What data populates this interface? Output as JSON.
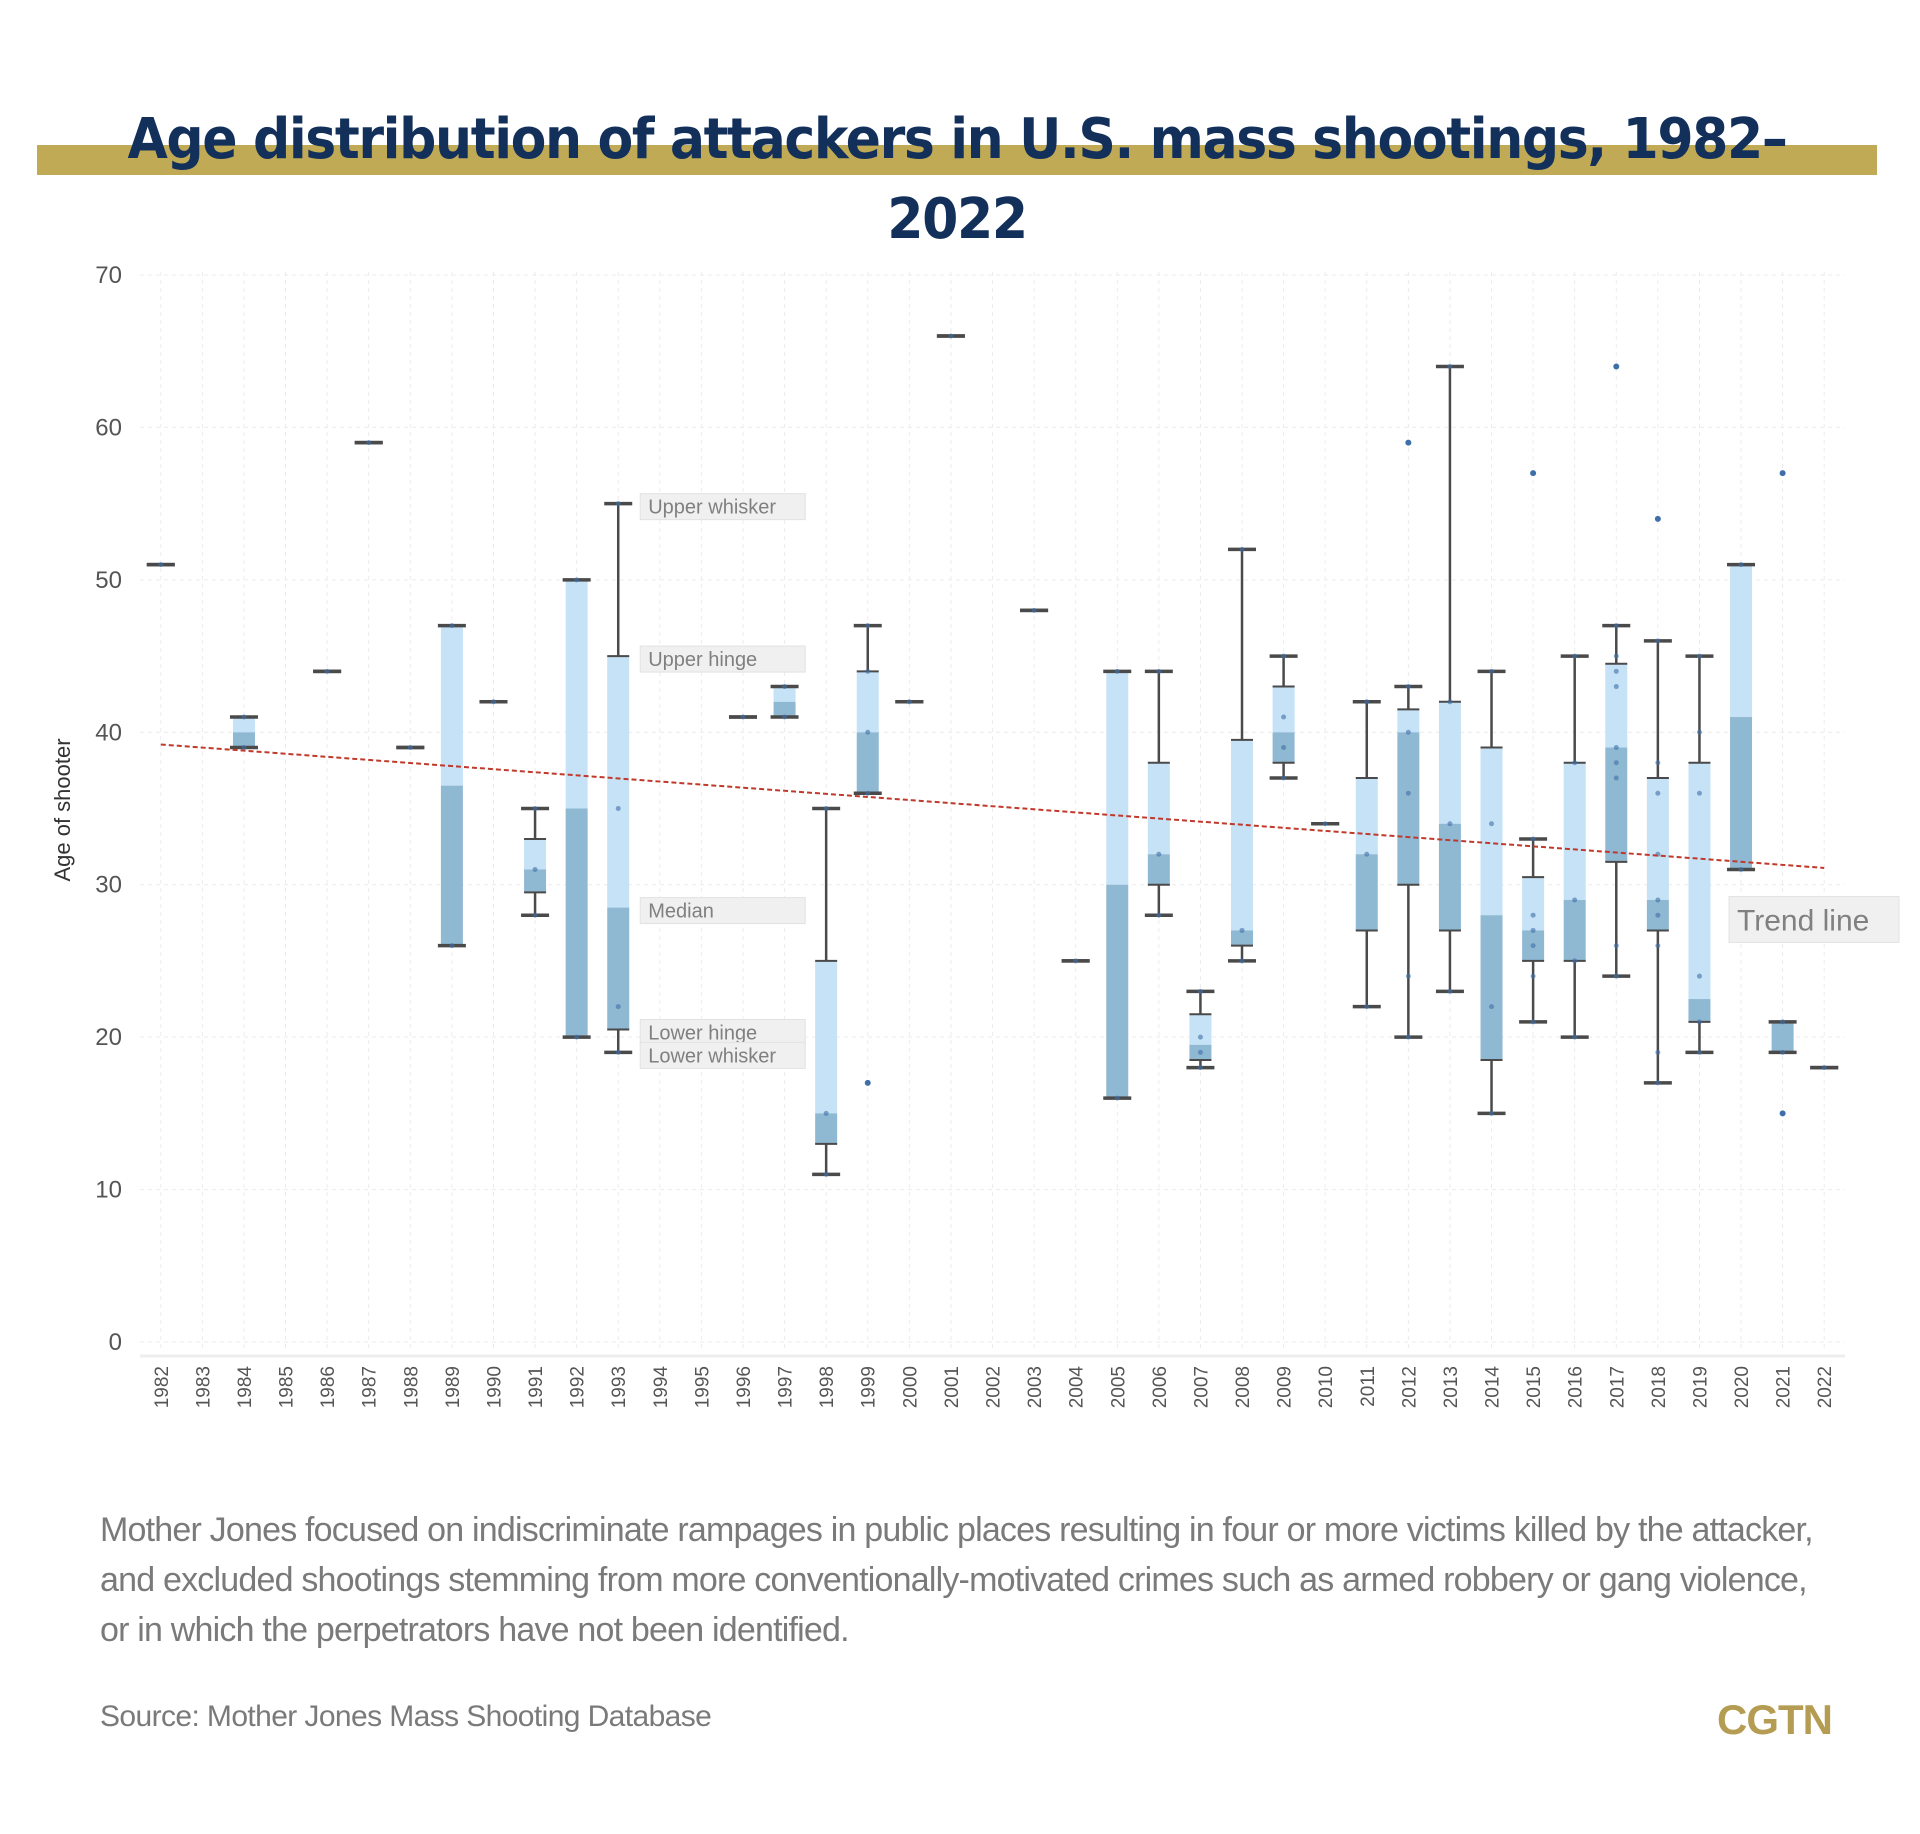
{
  "header": {
    "title": "Age distribution of attackers in U.S. mass shootings, 1982–2022"
  },
  "footer": {
    "note": "Mother Jones focused on indiscriminate rampages in public places resulting in four or more victims killed by the attacker, and excluded shootings stemming from more conventionally-motivated crimes such as armed robbery or gang violence, or in which the perpetrators have not been identified.",
    "source": "Source: Mother Jones Mass Shooting Database",
    "logo": "CGTN"
  },
  "colors": {
    "upper_box": "#c5e2f6",
    "lower_box": "#8fb8d3",
    "whisker": "#4a4a4a",
    "point": "#3f6fa8",
    "trend": "#c0392b",
    "title_bar": "#c0aa55",
    "title_text": "#13305a"
  },
  "chart_data": {
    "type": "box",
    "title": "Age distribution of attackers in U.S. mass shootings, 1982–2022",
    "xlabel": "",
    "ylabel": "Age of shooter",
    "ylim": [
      0,
      70
    ],
    "yticks": [
      0,
      10,
      20,
      30,
      40,
      50,
      60,
      70
    ],
    "grid": true,
    "categories": [
      "1982",
      "1983",
      "1984",
      "1985",
      "1986",
      "1987",
      "1988",
      "1989",
      "1990",
      "1991",
      "1992",
      "1993",
      "1994",
      "1995",
      "1996",
      "1997",
      "1998",
      "1999",
      "2000",
      "2001",
      "2002",
      "2003",
      "2004",
      "2005",
      "2006",
      "2007",
      "2008",
      "2009",
      "2010",
      "2011",
      "2012",
      "2013",
      "2014",
      "2015",
      "2016",
      "2017",
      "2018",
      "2019",
      "2020",
      "2021",
      "2022"
    ],
    "boxes": [
      {
        "year": "1982",
        "lw": 51,
        "q1": 51,
        "median": 51,
        "q3": 51,
        "uw": 51,
        "points": [
          51
        ],
        "outliers": []
      },
      {
        "year": "1983"
      },
      {
        "year": "1984",
        "lw": 39,
        "q1": 39,
        "median": 40,
        "q3": 41,
        "uw": 41,
        "points": [
          39,
          41
        ],
        "outliers": []
      },
      {
        "year": "1985"
      },
      {
        "year": "1986",
        "lw": 44,
        "q1": 44,
        "median": 44,
        "q3": 44,
        "uw": 44,
        "points": [
          44
        ],
        "outliers": []
      },
      {
        "year": "1987",
        "lw": 59,
        "q1": 59,
        "median": 59,
        "q3": 59,
        "uw": 59,
        "points": [
          59
        ],
        "outliers": []
      },
      {
        "year": "1988",
        "lw": 39,
        "q1": 39,
        "median": 39,
        "q3": 39,
        "uw": 39,
        "points": [
          39
        ],
        "outliers": []
      },
      {
        "year": "1989",
        "lw": 26,
        "q1": 26,
        "median": 36.5,
        "q3": 47,
        "uw": 47,
        "points": [
          26,
          47
        ],
        "outliers": []
      },
      {
        "year": "1990",
        "lw": 42,
        "q1": 42,
        "median": 42,
        "q3": 42,
        "uw": 42,
        "points": [
          42
        ],
        "outliers": []
      },
      {
        "year": "1991",
        "lw": 28,
        "q1": 29.5,
        "median": 31,
        "q3": 33,
        "uw": 35,
        "points": [
          28,
          31,
          35
        ],
        "outliers": []
      },
      {
        "year": "1992",
        "lw": 20,
        "q1": 20,
        "median": 35,
        "q3": 50,
        "uw": 50,
        "points": [
          20,
          50
        ],
        "outliers": []
      },
      {
        "year": "1993",
        "lw": 19,
        "q1": 20.5,
        "median": 28.5,
        "q3": 45,
        "uw": 55,
        "points": [
          19,
          22,
          35,
          55
        ],
        "outliers": []
      },
      {
        "year": "1994",
        "lw": 20,
        "q1": 20,
        "median": 20,
        "q3": 20,
        "uw": 20,
        "points": [
          20
        ],
        "outliers": []
      },
      {
        "year": "1995",
        "lw": 28,
        "q1": 28,
        "median": 28,
        "q3": 28,
        "uw": 28,
        "points": [
          28
        ],
        "outliers": []
      },
      {
        "year": "1996",
        "lw": 41,
        "q1": 41,
        "median": 41,
        "q3": 41,
        "uw": 41,
        "points": [
          41
        ],
        "outliers": []
      },
      {
        "year": "1997",
        "lw": 41,
        "q1": 41,
        "median": 42,
        "q3": 43,
        "uw": 43,
        "points": [
          41,
          43
        ],
        "outliers": []
      },
      {
        "year": "1998",
        "lw": 11,
        "q1": 13,
        "median": 15,
        "q3": 25,
        "uw": 35,
        "points": [
          11,
          15,
          35
        ],
        "outliers": []
      },
      {
        "year": "1999",
        "lw": 36,
        "q1": 36,
        "median": 40,
        "q3": 44,
        "uw": 47,
        "points": [
          36,
          40,
          44,
          47
        ],
        "outliers": [
          17
        ]
      },
      {
        "year": "2000",
        "lw": 42,
        "q1": 42,
        "median": 42,
        "q3": 42,
        "uw": 42,
        "points": [
          42
        ],
        "outliers": []
      },
      {
        "year": "2001",
        "lw": 66,
        "q1": 66,
        "median": 66,
        "q3": 66,
        "uw": 66,
        "points": [
          66
        ],
        "outliers": []
      },
      {
        "year": "2002"
      },
      {
        "year": "2003",
        "lw": 48,
        "q1": 48,
        "median": 48,
        "q3": 48,
        "uw": 48,
        "points": [
          48
        ],
        "outliers": []
      },
      {
        "year": "2004",
        "lw": 25,
        "q1": 25,
        "median": 25,
        "q3": 25,
        "uw": 25,
        "points": [
          25
        ],
        "outliers": []
      },
      {
        "year": "2005",
        "lw": 16,
        "q1": 16,
        "median": 30,
        "q3": 44,
        "uw": 44,
        "points": [
          16,
          44
        ],
        "outliers": []
      },
      {
        "year": "2006",
        "lw": 28,
        "q1": 30,
        "median": 32,
        "q3": 38,
        "uw": 44,
        "points": [
          28,
          32,
          44
        ],
        "outliers": []
      },
      {
        "year": "2007",
        "lw": 18,
        "q1": 18.5,
        "median": 19.5,
        "q3": 21.5,
        "uw": 23,
        "points": [
          18,
          19,
          20,
          23
        ],
        "outliers": []
      },
      {
        "year": "2008",
        "lw": 25,
        "q1": 26,
        "median": 27,
        "q3": 39.5,
        "uw": 52,
        "points": [
          25,
          27,
          52
        ],
        "outliers": []
      },
      {
        "year": "2009",
        "lw": 37,
        "q1": 38,
        "median": 40,
        "q3": 43,
        "uw": 45,
        "points": [
          37,
          39,
          41,
          45
        ],
        "outliers": []
      },
      {
        "year": "2010",
        "lw": 34,
        "q1": 34,
        "median": 34,
        "q3": 34,
        "uw": 34,
        "points": [
          34
        ],
        "outliers": []
      },
      {
        "year": "2011",
        "lw": 22,
        "q1": 27,
        "median": 32,
        "q3": 37,
        "uw": 42,
        "points": [
          22,
          32,
          42
        ],
        "outliers": []
      },
      {
        "year": "2012",
        "lw": 20,
        "q1": 30,
        "median": 40,
        "q3": 41.5,
        "uw": 43,
        "points": [
          20,
          24,
          36,
          40,
          43
        ],
        "outliers": [
          59
        ]
      },
      {
        "year": "2013",
        "lw": 23,
        "q1": 27,
        "median": 34,
        "q3": 42,
        "uw": 64,
        "points": [
          23,
          34,
          42,
          64
        ],
        "outliers": []
      },
      {
        "year": "2014",
        "lw": 15,
        "q1": 18.5,
        "median": 28,
        "q3": 39,
        "uw": 44,
        "points": [
          15,
          22,
          34,
          44
        ],
        "outliers": []
      },
      {
        "year": "2015",
        "lw": 21,
        "q1": 25,
        "median": 27,
        "q3": 30.5,
        "uw": 33,
        "points": [
          21,
          24,
          26,
          27,
          28,
          33
        ],
        "outliers": [
          57
        ]
      },
      {
        "year": "2016",
        "lw": 20,
        "q1": 25,
        "median": 29,
        "q3": 38,
        "uw": 45,
        "points": [
          20,
          25,
          29,
          38,
          45
        ],
        "outliers": []
      },
      {
        "year": "2017",
        "lw": 24,
        "q1": 31.5,
        "median": 39,
        "q3": 44.5,
        "uw": 47,
        "points": [
          24,
          26,
          37,
          38,
          39,
          43,
          44,
          45,
          47
        ],
        "outliers": [
          64
        ]
      },
      {
        "year": "2018",
        "lw": 17,
        "q1": 27,
        "median": 29,
        "q3": 37,
        "uw": 46,
        "points": [
          17,
          19,
          26,
          28,
          29,
          32,
          36,
          38,
          46
        ],
        "outliers": [
          54
        ]
      },
      {
        "year": "2019",
        "lw": 19,
        "q1": 21,
        "median": 22.5,
        "q3": 38,
        "uw": 45,
        "points": [
          19,
          21,
          24,
          36,
          40,
          45
        ],
        "outliers": []
      },
      {
        "year": "2020",
        "lw": 31,
        "q1": 31,
        "median": 41,
        "q3": 51,
        "uw": 51,
        "points": [
          31,
          51
        ],
        "outliers": []
      },
      {
        "year": "2021",
        "lw": 19,
        "q1": 19,
        "median": 21,
        "q3": 21,
        "uw": 21,
        "points": [
          19,
          21
        ],
        "outliers": [
          15,
          57
        ]
      },
      {
        "year": "2022",
        "lw": 18,
        "q1": 18,
        "median": 18,
        "q3": 18,
        "uw": 18,
        "points": [
          18
        ],
        "outliers": []
      }
    ],
    "trend_line": {
      "start": {
        "year": "1982",
        "value": 39.2
      },
      "end": {
        "year": "2022",
        "value": 31.1
      }
    },
    "annotations": [
      {
        "text": "Upper whisker",
        "year": "1993",
        "value": 55
      },
      {
        "text": "Upper hinge",
        "year": "1993",
        "value": 45
      },
      {
        "text": "Median",
        "year": "1993",
        "value": 28.5
      },
      {
        "text": "Lower hinge",
        "year": "1993",
        "value": 20.5
      },
      {
        "text": "Lower whisker",
        "year": "1993",
        "value": 19
      },
      {
        "text": "Trend line",
        "year": "2020",
        "value": 27
      }
    ]
  }
}
